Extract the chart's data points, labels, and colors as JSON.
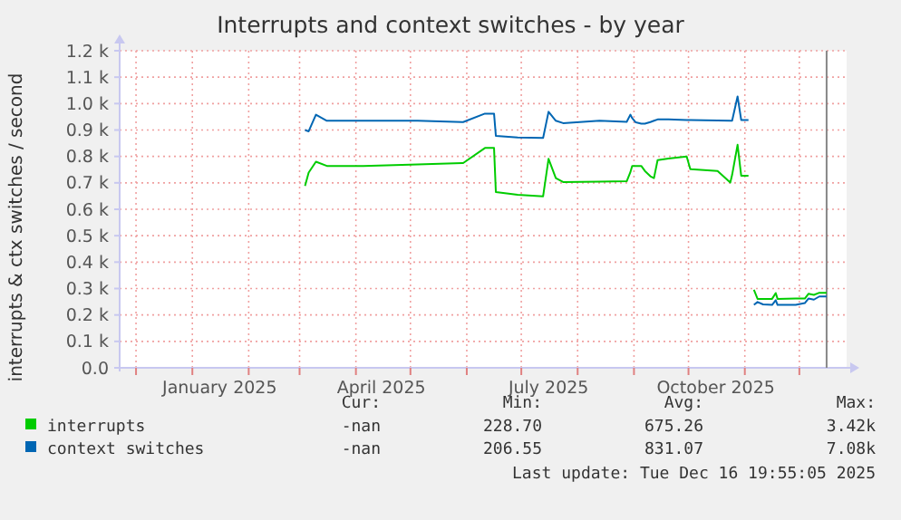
{
  "chart_data": {
    "type": "line",
    "title": "Interrupts and context switches - by year",
    "ylabel": "interrupts & ctx switches / second",
    "x": [
      "2025-03-04",
      "2025-03-06",
      "2025-03-10",
      "2025-03-16",
      "2025-04-05",
      "2025-05-05",
      "2025-05-30",
      "2025-06-11",
      "2025-06-16",
      "2025-06-17",
      "2025-06-29",
      "2025-07-13",
      "2025-07-16",
      "2025-07-20",
      "2025-07-24",
      "2025-08-13",
      "2025-08-28",
      "2025-08-30",
      "2025-08-31",
      "2025-09-02",
      "2025-09-05",
      "2025-09-07",
      "2025-09-10",
      "2025-09-12",
      "2025-09-14",
      "2025-09-20",
      "2025-09-30",
      "2025-10-02",
      "2025-10-17",
      "2025-10-24",
      "2025-10-25",
      "2025-10-28",
      "2025-10-30",
      "2025-11-03",
      "2025-11-05",
      "2025-11-06",
      "2025-11-08",
      "2025-11-11",
      "2025-11-16",
      "2025-11-18",
      "2025-11-19",
      "2025-11-29",
      "2025-12-04",
      "2025-12-06",
      "2025-12-09",
      "2025-12-12",
      "2025-12-16"
    ],
    "series": [
      {
        "name": "interrupts",
        "color": "#00cc00",
        "values": [
          688,
          739,
          780,
          764,
          764,
          770,
          775,
          832,
          832,
          665,
          655,
          649,
          791,
          718,
          703,
          705,
          706,
          740,
          764,
          764,
          764,
          745,
          725,
          718,
          786,
          792,
          800,
          752,
          745,
          701,
          730,
          844,
          727,
          727,
          null,
          295,
          261,
          261,
          261,
          283,
          261,
          262,
          262,
          280,
          276,
          284,
          284
        ]
      },
      {
        "name": "context switches",
        "color": "#0066b3",
        "values": [
          900,
          895,
          958,
          935,
          935,
          935,
          930,
          962,
          962,
          878,
          872,
          870,
          969,
          935,
          926,
          935,
          931,
          958,
          945,
          929,
          924,
          924,
          930,
          935,
          940,
          940,
          938,
          938,
          936,
          935,
          935,
          1027,
          938,
          938,
          null,
          238,
          249,
          240,
          238,
          256,
          238,
          238,
          245,
          262,
          258,
          270,
          270
        ]
      }
    ],
    "xlim": [
      "2024-11-19",
      "2025-12-29"
    ],
    "xticks": [
      {
        "value": "2024-12-01",
        "label": null
      },
      {
        "value": "2025-01-01",
        "label": null
      },
      {
        "value": "2025-02-01",
        "label": null
      },
      {
        "value": "2025-03-01",
        "label": null
      },
      {
        "value": "2025-04-01",
        "label": null
      },
      {
        "value": "2025-05-01",
        "label": null
      },
      {
        "value": "2025-06-01",
        "label": null
      },
      {
        "value": "2025-07-01",
        "label": null
      },
      {
        "value": "2025-08-01",
        "label": null
      },
      {
        "value": "2025-09-01",
        "label": null
      },
      {
        "value": "2025-10-01",
        "label": null
      },
      {
        "value": "2025-11-01",
        "label": null
      },
      {
        "value": "2025-12-01",
        "label": null
      },
      {
        "value": "2025-01-16",
        "label": "January 2025"
      },
      {
        "value": "2025-04-15",
        "label": "April 2025"
      },
      {
        "value": "2025-07-16",
        "label": "July 2025"
      },
      {
        "value": "2025-10-16",
        "label": "October 2025"
      }
    ],
    "ylim": [
      0,
      1200
    ],
    "yticks": [
      {
        "value": 0,
        "label": "0.0"
      },
      {
        "value": 100,
        "label": "0.1 k"
      },
      {
        "value": 200,
        "label": "0.2 k"
      },
      {
        "value": 300,
        "label": "0.3 k"
      },
      {
        "value": 400,
        "label": "0.4 k"
      },
      {
        "value": 500,
        "label": "0.5 k"
      },
      {
        "value": 600,
        "label": "0.6 k"
      },
      {
        "value": 700,
        "label": "0.7 k"
      },
      {
        "value": 800,
        "label": "0.8 k"
      },
      {
        "value": 900,
        "label": "0.9 k"
      },
      {
        "value": 1000,
        "label": "1.0 k"
      },
      {
        "value": 1100,
        "label": "1.1 k"
      },
      {
        "value": 1200,
        "label": "1.2 k"
      }
    ],
    "grid": true,
    "legend": "bottom",
    "ref_lines": [
      {
        "axis": "x",
        "value": "2025-12-16",
        "color": "#888888"
      }
    ],
    "annotations": [
      "Cur:",
      "Min:",
      "Avg:",
      "Max:",
      "-nan",
      "228.70",
      "675.26",
      "3.42k",
      "-nan",
      "206.55",
      "831.07",
      "7.08k",
      "Last update: Tue Dec 16 19:55:05 2025"
    ]
  }
}
